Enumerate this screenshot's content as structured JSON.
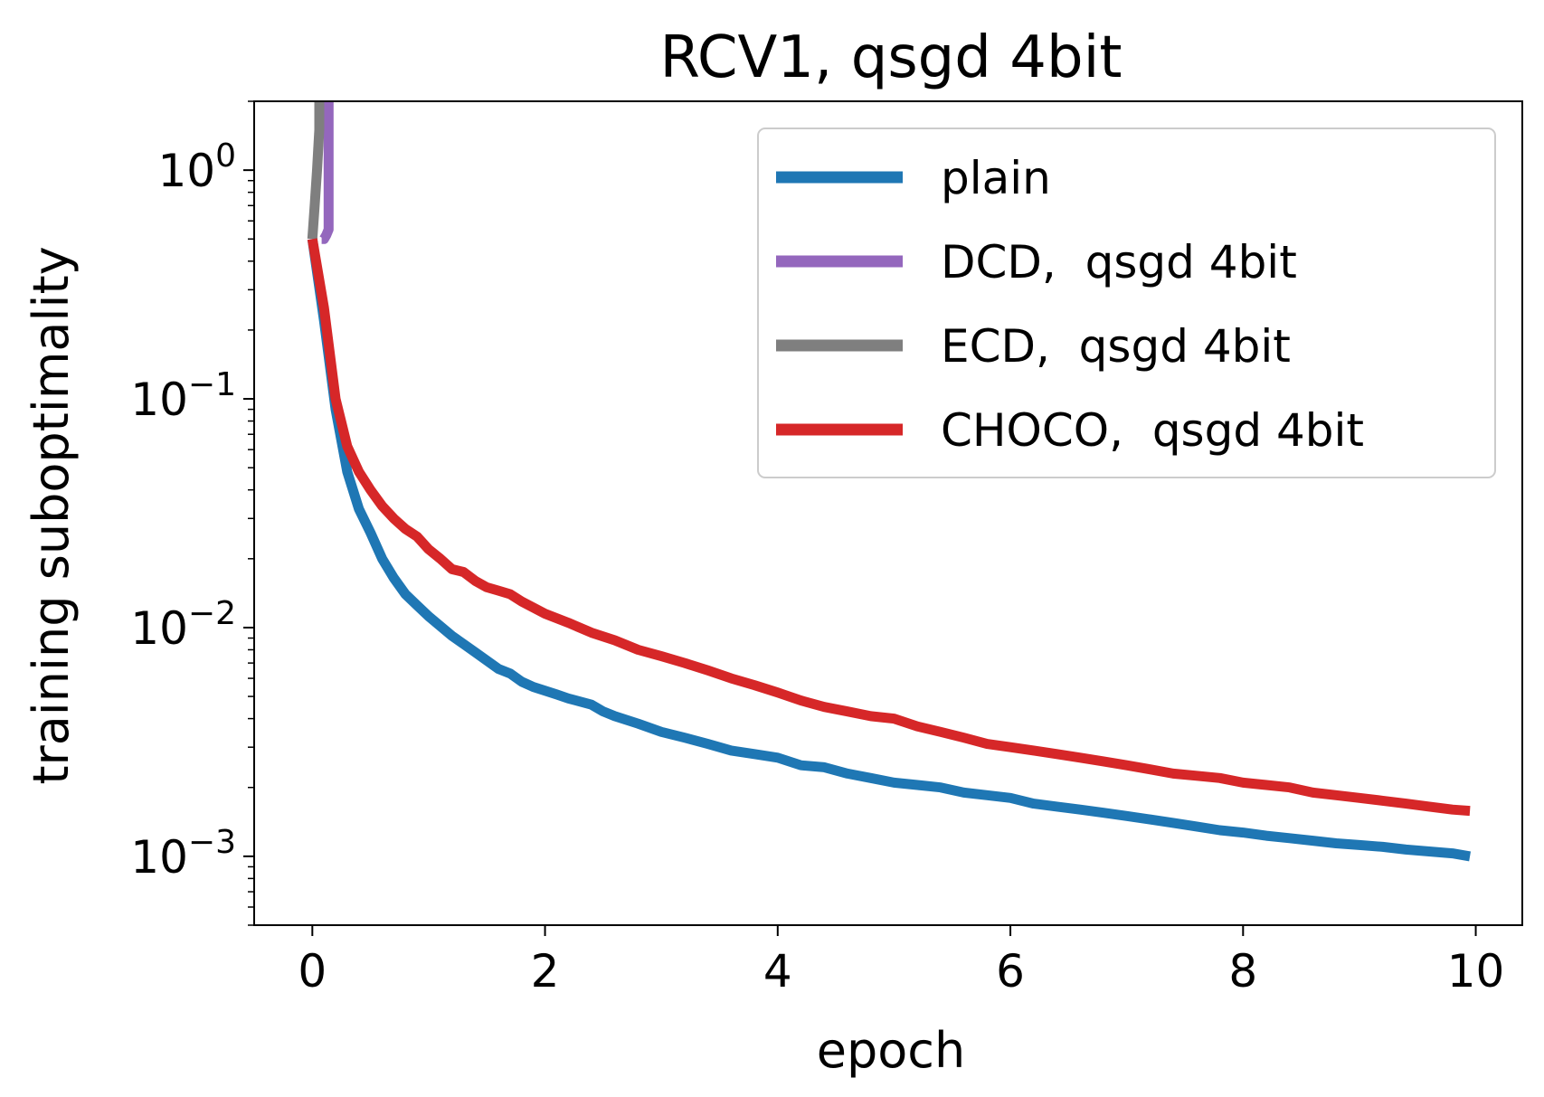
{
  "chart_data": {
    "type": "line",
    "title": "RCV1, qsgd 4bit",
    "xlabel": "epoch",
    "ylabel": "training suboptimality",
    "xlim": [
      -0.5,
      10.4
    ],
    "ylim": [
      0.0005,
      2.0
    ],
    "yscale": "log",
    "grid": false,
    "legend_position": "top-right",
    "x_ticks": [
      0,
      2,
      4,
      6,
      8,
      10
    ],
    "y_ticks": [
      {
        "value": 1,
        "base": "10",
        "exp": "0"
      },
      {
        "value": 0.1,
        "base": "10",
        "exp": "−1"
      },
      {
        "value": 0.01,
        "base": "10",
        "exp": "−2"
      },
      {
        "value": 0.001,
        "base": "10",
        "exp": "−3"
      }
    ],
    "series": [
      {
        "name": "plain",
        "color": "#1f77b4",
        "x": [
          0,
          0.1,
          0.2,
          0.3,
          0.4,
          0.5,
          0.6,
          0.7,
          0.8,
          0.9,
          1.0,
          1.2,
          1.4,
          1.6,
          1.7,
          1.8,
          1.9,
          2.0,
          2.1,
          2.2,
          2.4,
          2.5,
          2.6,
          2.8,
          3.0,
          3.2,
          3.4,
          3.6,
          3.8,
          4.0,
          4.2,
          4.4,
          4.6,
          4.8,
          5.0,
          5.2,
          5.4,
          5.6,
          5.8,
          6.0,
          6.2,
          6.4,
          6.6,
          6.8,
          7.0,
          7.2,
          7.4,
          7.6,
          7.8,
          8.0,
          8.2,
          8.4,
          8.6,
          8.8,
          9.0,
          9.2,
          9.4,
          9.6,
          9.8,
          9.95
        ],
        "y": [
          0.5,
          0.22,
          0.09,
          0.048,
          0.033,
          0.026,
          0.02,
          0.0165,
          0.014,
          0.0125,
          0.0112,
          0.0092,
          0.0078,
          0.0066,
          0.0063,
          0.0058,
          0.0055,
          0.0053,
          0.0051,
          0.0049,
          0.0046,
          0.0043,
          0.0041,
          0.0038,
          0.0035,
          0.0033,
          0.0031,
          0.0029,
          0.0028,
          0.0027,
          0.0025,
          0.00245,
          0.0023,
          0.0022,
          0.0021,
          0.00205,
          0.002,
          0.0019,
          0.00185,
          0.0018,
          0.0017,
          0.00165,
          0.0016,
          0.00155,
          0.0015,
          0.00145,
          0.0014,
          0.00135,
          0.0013,
          0.00127,
          0.00123,
          0.0012,
          0.00117,
          0.00114,
          0.00112,
          0.0011,
          0.00107,
          0.00105,
          0.00103,
          0.001
        ]
      },
      {
        "name": "DCD,  qsgd 4bit",
        "color": "#9467bd",
        "x": [
          0.08,
          0.1,
          0.12,
          0.14,
          0.14
        ],
        "y": [
          0.5,
          0.5,
          0.52,
          0.55,
          2.0
        ]
      },
      {
        "name": "ECD,  qsgd 4bit",
        "color": "#7f7f7f",
        "x": [
          0,
          0.02,
          0.04,
          0.06,
          0.06
        ],
        "y": [
          0.5,
          0.7,
          1.0,
          1.5,
          2.0
        ]
      },
      {
        "name": "CHOCO,  qsgd 4bit",
        "color": "#d62728",
        "x": [
          0,
          0.1,
          0.2,
          0.3,
          0.4,
          0.5,
          0.6,
          0.7,
          0.8,
          0.9,
          1.0,
          1.1,
          1.2,
          1.3,
          1.4,
          1.5,
          1.6,
          1.7,
          1.8,
          2.0,
          2.2,
          2.4,
          2.6,
          2.8,
          3.0,
          3.2,
          3.4,
          3.6,
          3.8,
          4.0,
          4.2,
          4.4,
          4.6,
          4.8,
          5.0,
          5.2,
          5.4,
          5.6,
          5.8,
          6.0,
          6.2,
          6.4,
          6.6,
          6.8,
          7.0,
          7.2,
          7.4,
          7.6,
          7.8,
          8.0,
          8.2,
          8.4,
          8.6,
          8.8,
          9.0,
          9.2,
          9.4,
          9.6,
          9.8,
          9.95
        ],
        "y": [
          0.5,
          0.25,
          0.1,
          0.062,
          0.048,
          0.04,
          0.034,
          0.03,
          0.027,
          0.025,
          0.022,
          0.02,
          0.018,
          0.0175,
          0.016,
          0.015,
          0.0145,
          0.014,
          0.013,
          0.0115,
          0.0105,
          0.0095,
          0.0088,
          0.008,
          0.0075,
          0.007,
          0.0065,
          0.006,
          0.0056,
          0.0052,
          0.0048,
          0.0045,
          0.0043,
          0.0041,
          0.004,
          0.0037,
          0.0035,
          0.0033,
          0.0031,
          0.003,
          0.0029,
          0.0028,
          0.0027,
          0.0026,
          0.0025,
          0.0024,
          0.0023,
          0.00225,
          0.0022,
          0.0021,
          0.00205,
          0.002,
          0.0019,
          0.00185,
          0.0018,
          0.00175,
          0.0017,
          0.00165,
          0.0016,
          0.00158
        ]
      }
    ]
  }
}
